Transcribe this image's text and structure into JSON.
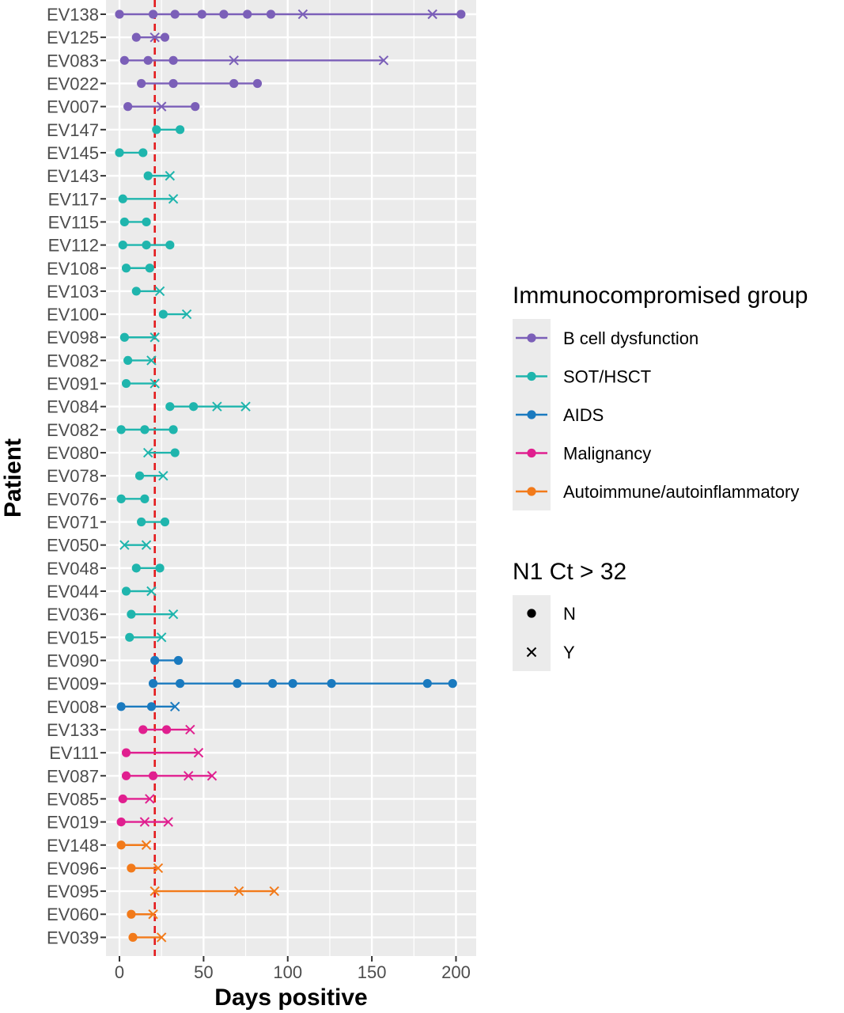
{
  "chart_data": {
    "type": "dot-line",
    "xlabel": "Days positive",
    "ylabel": "Patient",
    "xlim": [
      -8,
      212
    ],
    "x_ticks": [
      0,
      50,
      100,
      150,
      200
    ],
    "reference_line": {
      "x": 21,
      "style": "dashed",
      "color": "#e41a1c"
    },
    "legend_group": {
      "title": "Immunocompromised group",
      "items": [
        {
          "label": "B cell dysfunction",
          "color": "#7b5fb8"
        },
        {
          "label": "SOT/HSCT",
          "color": "#1fb5ad"
        },
        {
          "label": "AIDS",
          "color": "#1a7abf"
        },
        {
          "label": "Malignancy",
          "color": "#e01f8f"
        },
        {
          "label": "Autoimmune/autoinflammatory",
          "color": "#f27a1a"
        }
      ]
    },
    "legend_shape": {
      "title": "N1 Ct > 32",
      "items": [
        {
          "label": "N",
          "shape": "dot"
        },
        {
          "label": "Y",
          "shape": "cross"
        }
      ]
    },
    "patients": [
      {
        "id": "EV138",
        "group": 0,
        "points": [
          [
            0,
            "N"
          ],
          [
            20,
            "N"
          ],
          [
            33,
            "N"
          ],
          [
            49,
            "N"
          ],
          [
            62,
            "N"
          ],
          [
            76,
            "N"
          ],
          [
            90,
            "N"
          ],
          [
            109,
            "Y"
          ],
          [
            186,
            "Y"
          ],
          [
            203,
            "N"
          ]
        ]
      },
      {
        "id": "EV125",
        "group": 0,
        "points": [
          [
            10,
            "N"
          ],
          [
            21,
            "Y"
          ],
          [
            27,
            "N"
          ]
        ]
      },
      {
        "id": "EV083",
        "group": 0,
        "points": [
          [
            3,
            "N"
          ],
          [
            17,
            "N"
          ],
          [
            32,
            "N"
          ],
          [
            68,
            "Y"
          ],
          [
            157,
            "Y"
          ]
        ]
      },
      {
        "id": "EV022",
        "group": 0,
        "points": [
          [
            13,
            "N"
          ],
          [
            32,
            "N"
          ],
          [
            68,
            "N"
          ],
          [
            82,
            "N"
          ]
        ]
      },
      {
        "id": "EV007",
        "group": 0,
        "points": [
          [
            5,
            "N"
          ],
          [
            25,
            "Y"
          ],
          [
            45,
            "N"
          ]
        ]
      },
      {
        "id": "EV147",
        "group": 1,
        "points": [
          [
            22,
            "N"
          ],
          [
            36,
            "N"
          ]
        ]
      },
      {
        "id": "EV145",
        "group": 1,
        "points": [
          [
            0,
            "N"
          ],
          [
            14,
            "N"
          ]
        ]
      },
      {
        "id": "EV143",
        "group": 1,
        "points": [
          [
            17,
            "N"
          ],
          [
            30,
            "Y"
          ]
        ]
      },
      {
        "id": "EV117",
        "group": 1,
        "points": [
          [
            2,
            "N"
          ],
          [
            32,
            "Y"
          ]
        ]
      },
      {
        "id": "EV115",
        "group": 1,
        "points": [
          [
            3,
            "N"
          ],
          [
            16,
            "N"
          ]
        ]
      },
      {
        "id": "EV112",
        "group": 1,
        "points": [
          [
            2,
            "N"
          ],
          [
            16,
            "N"
          ],
          [
            30,
            "N"
          ]
        ]
      },
      {
        "id": "EV108",
        "group": 1,
        "points": [
          [
            4,
            "N"
          ],
          [
            18,
            "N"
          ]
        ]
      },
      {
        "id": "EV103",
        "group": 1,
        "points": [
          [
            10,
            "N"
          ],
          [
            24,
            "Y"
          ]
        ]
      },
      {
        "id": "EV100",
        "group": 1,
        "points": [
          [
            26,
            "N"
          ],
          [
            40,
            "Y"
          ]
        ]
      },
      {
        "id": "EV098",
        "group": 1,
        "points": [
          [
            3,
            "N"
          ],
          [
            21,
            "Y"
          ]
        ]
      },
      {
        "id": "EV082",
        "group": 1,
        "points": [
          [
            5,
            "N"
          ],
          [
            19,
            "Y"
          ]
        ]
      },
      {
        "id": "EV091",
        "group": 1,
        "points": [
          [
            4,
            "N"
          ],
          [
            21,
            "Y"
          ]
        ]
      },
      {
        "id": "EV084",
        "group": 1,
        "points": [
          [
            30,
            "N"
          ],
          [
            44,
            "N"
          ],
          [
            58,
            "Y"
          ],
          [
            75,
            "Y"
          ]
        ]
      },
      {
        "id": "EV082",
        "group": 1,
        "points": [
          [
            1,
            "N"
          ],
          [
            15,
            "N"
          ],
          [
            32,
            "N"
          ]
        ]
      },
      {
        "id": "EV080",
        "group": 1,
        "points": [
          [
            17,
            "Y"
          ],
          [
            33,
            "N"
          ]
        ]
      },
      {
        "id": "EV078",
        "group": 1,
        "points": [
          [
            12,
            "N"
          ],
          [
            26,
            "Y"
          ]
        ]
      },
      {
        "id": "EV076",
        "group": 1,
        "points": [
          [
            1,
            "N"
          ],
          [
            15,
            "N"
          ]
        ]
      },
      {
        "id": "EV071",
        "group": 1,
        "points": [
          [
            13,
            "N"
          ],
          [
            27,
            "N"
          ]
        ]
      },
      {
        "id": "EV050",
        "group": 1,
        "points": [
          [
            3,
            "Y"
          ],
          [
            16,
            "Y"
          ]
        ]
      },
      {
        "id": "EV048",
        "group": 1,
        "points": [
          [
            10,
            "N"
          ],
          [
            24,
            "N"
          ]
        ]
      },
      {
        "id": "EV044",
        "group": 1,
        "points": [
          [
            4,
            "N"
          ],
          [
            19,
            "Y"
          ]
        ]
      },
      {
        "id": "EV036",
        "group": 1,
        "points": [
          [
            7,
            "N"
          ],
          [
            32,
            "Y"
          ]
        ]
      },
      {
        "id": "EV015",
        "group": 1,
        "points": [
          [
            6,
            "N"
          ],
          [
            25,
            "Y"
          ]
        ]
      },
      {
        "id": "EV090",
        "group": 2,
        "points": [
          [
            21,
            "N"
          ],
          [
            35,
            "N"
          ]
        ]
      },
      {
        "id": "EV009",
        "group": 2,
        "points": [
          [
            20,
            "N"
          ],
          [
            36,
            "N"
          ],
          [
            70,
            "N"
          ],
          [
            91,
            "N"
          ],
          [
            103,
            "N"
          ],
          [
            126,
            "N"
          ],
          [
            183,
            "N"
          ],
          [
            198,
            "N"
          ]
        ]
      },
      {
        "id": "EV008",
        "group": 2,
        "points": [
          [
            1,
            "N"
          ],
          [
            19,
            "N"
          ],
          [
            33,
            "Y"
          ]
        ]
      },
      {
        "id": "EV133",
        "group": 3,
        "points": [
          [
            14,
            "N"
          ],
          [
            28,
            "N"
          ],
          [
            42,
            "Y"
          ]
        ]
      },
      {
        "id": "EV111",
        "group": 3,
        "points": [
          [
            4,
            "N"
          ],
          [
            47,
            "Y"
          ]
        ]
      },
      {
        "id": "EV087",
        "group": 3,
        "points": [
          [
            4,
            "N"
          ],
          [
            20,
            "N"
          ],
          [
            41,
            "Y"
          ],
          [
            55,
            "Y"
          ]
        ]
      },
      {
        "id": "EV085",
        "group": 3,
        "points": [
          [
            2,
            "N"
          ],
          [
            18,
            "Y"
          ]
        ]
      },
      {
        "id": "EV019",
        "group": 3,
        "points": [
          [
            1,
            "N"
          ],
          [
            15,
            "Y"
          ],
          [
            29,
            "Y"
          ]
        ]
      },
      {
        "id": "EV148",
        "group": 4,
        "points": [
          [
            1,
            "N"
          ],
          [
            16,
            "Y"
          ]
        ]
      },
      {
        "id": "EV096",
        "group": 4,
        "points": [
          [
            7,
            "N"
          ],
          [
            23,
            "Y"
          ]
        ]
      },
      {
        "id": "EV095",
        "group": 4,
        "points": [
          [
            21,
            "Y"
          ],
          [
            71,
            "Y"
          ],
          [
            92,
            "Y"
          ]
        ]
      },
      {
        "id": "EV060",
        "group": 4,
        "points": [
          [
            7,
            "N"
          ],
          [
            20,
            "Y"
          ]
        ]
      },
      {
        "id": "EV039",
        "group": 4,
        "points": [
          [
            8,
            "N"
          ],
          [
            25,
            "Y"
          ]
        ]
      }
    ]
  }
}
